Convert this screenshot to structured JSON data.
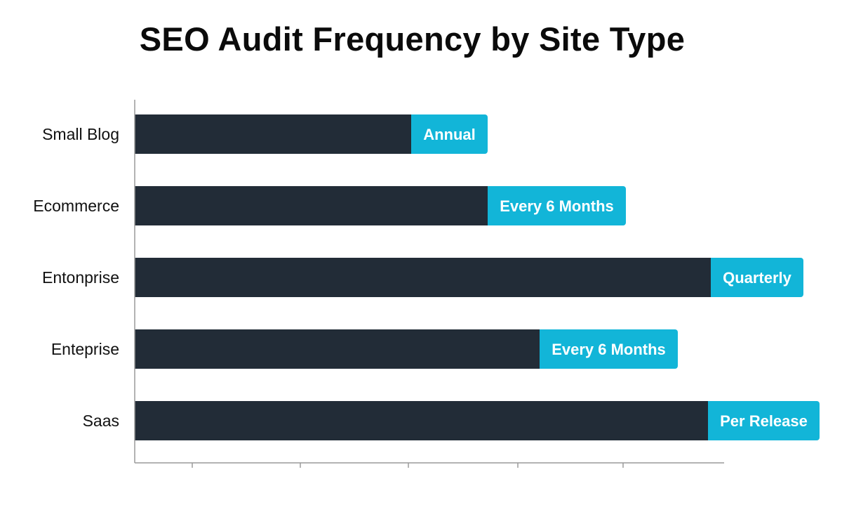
{
  "chart_data": {
    "type": "bar",
    "orientation": "horizontal",
    "title": "SEO Audit Frequency by Site Type",
    "categories": [
      "Small Blog",
      "Ecommerce",
      "Entonprise",
      "Enteprise",
      "Saas"
    ],
    "values": [
      394,
      503,
      821,
      577,
      817
    ],
    "value_labels": [
      "Annual",
      "Every 6 Months",
      "Quarterly",
      "Every 6 Months",
      "Per Release"
    ],
    "xlim": [
      0,
      840
    ],
    "x_tick_count": 6,
    "grid": false,
    "colors": {
      "bar": "#222c37",
      "label_tag": "#12b5d8",
      "axis": "#9a9a9a"
    }
  }
}
